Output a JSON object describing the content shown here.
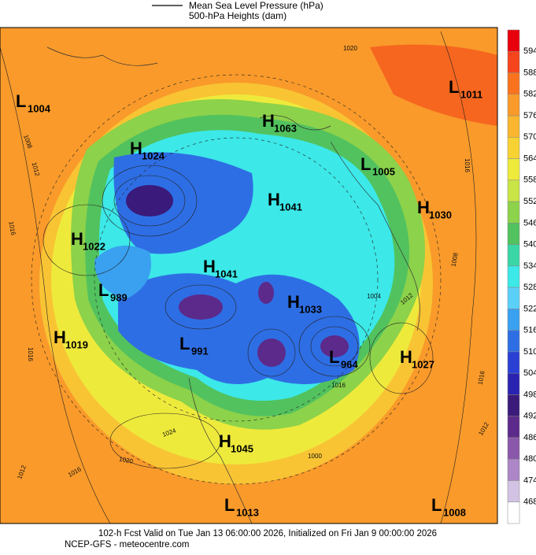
{
  "legend": {
    "mslp": "Mean Sea Level Pressure (hPa)",
    "heights": "500-hPa Heights (dam)"
  },
  "centers": [
    {
      "kind": "L",
      "value": 1004
    },
    {
      "kind": "H",
      "value": 1063
    },
    {
      "kind": "L",
      "value": 1011
    },
    {
      "kind": "H",
      "value": 1024
    },
    {
      "kind": "L",
      "value": 1005
    },
    {
      "kind": "H",
      "value": 1041
    },
    {
      "kind": "H",
      "value": 1030
    },
    {
      "kind": "H",
      "value": 1022
    },
    {
      "kind": "H",
      "value": 1041
    },
    {
      "kind": "L",
      "value": 989
    },
    {
      "kind": "H",
      "value": 1033
    },
    {
      "kind": "H",
      "value": 1019
    },
    {
      "kind": "L",
      "value": 991
    },
    {
      "kind": "L",
      "value": 964
    },
    {
      "kind": "H",
      "value": 1027
    },
    {
      "kind": "H",
      "value": 1045
    },
    {
      "kind": "L",
      "value": 1013
    },
    {
      "kind": "L",
      "value": 1008
    }
  ],
  "contour_labels": [
    1020,
    1008,
    1012,
    1016,
    1016,
    1012,
    1016,
    1020,
    1024,
    1012,
    1016,
    1016,
    1008,
    1012,
    1004,
    1016,
    1000
  ],
  "colorbar": {
    "ticks": [
      594,
      588,
      582,
      576,
      570,
      564,
      558,
      552,
      546,
      540,
      534,
      528,
      522,
      516,
      510,
      504,
      498,
      492,
      486,
      480,
      474,
      468
    ],
    "colors": [
      "#e8000c",
      "#f6441c",
      "#f9731f",
      "#f99a2a",
      "#f9b62e",
      "#f8d232",
      "#eeea3c",
      "#c8e446",
      "#8cd24a",
      "#52c25e",
      "#3ad6a6",
      "#3ce8e8",
      "#5ad0f8",
      "#3aa0f0",
      "#2e6ee4",
      "#2a40d4",
      "#2a22b0",
      "#3a1a7a",
      "#5c2a8a",
      "#8a58aa",
      "#ac86c6",
      "#d2c2e4",
      "#ffffff"
    ]
  },
  "footer": {
    "line1": "102-h Fcst Valid on Tue Jan 13 06:00:00 2026, Initialized on Fri Jan  9 00:00:00 2026",
    "line2": "NCEP-GFS - meteocentre.com"
  }
}
